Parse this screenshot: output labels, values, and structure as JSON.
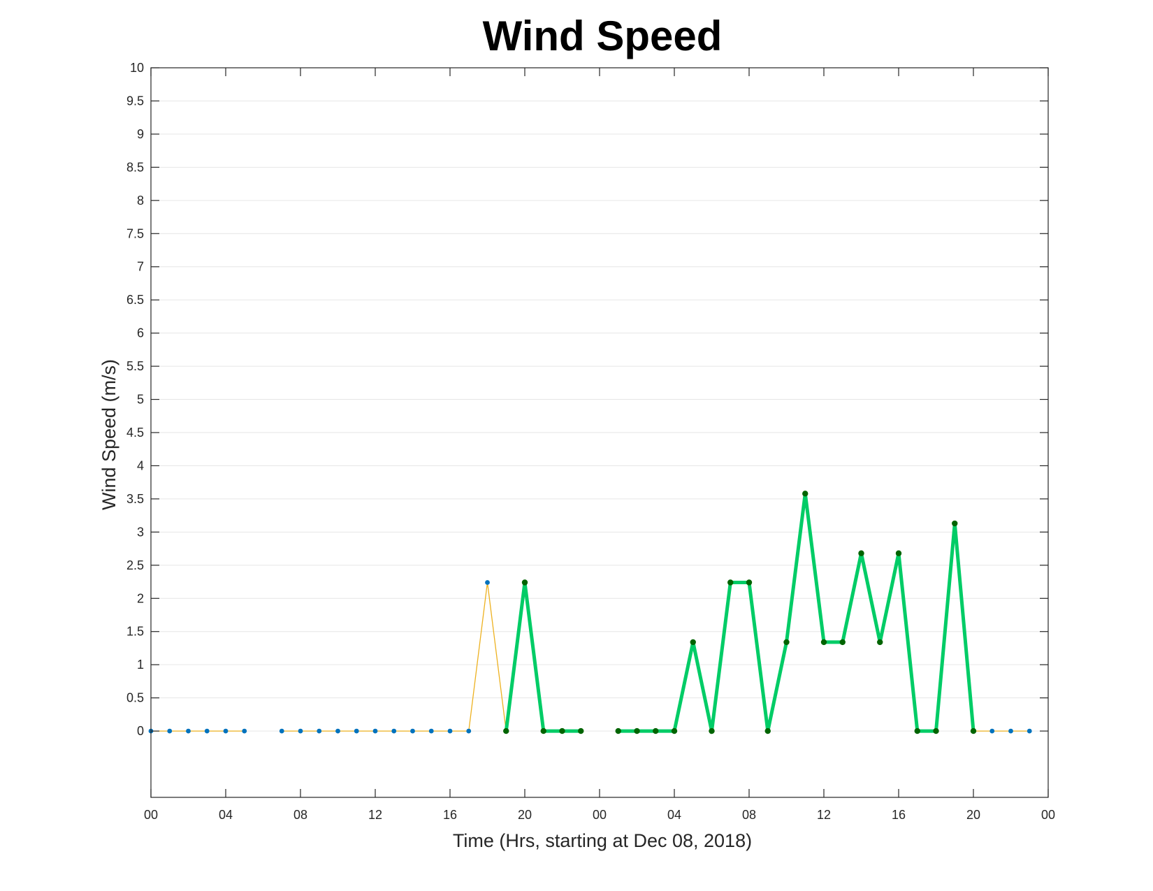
{
  "chart_data": {
    "type": "line",
    "title": "Wind Speed",
    "xlabel": "Time (Hrs, starting at Dec 08, 2018)",
    "ylabel": "Wind Speed (m/s)",
    "xlim": [
      0,
      48
    ],
    "ylim": [
      -1,
      10
    ],
    "yticks": [
      0,
      0.5,
      1,
      1.5,
      2,
      2.5,
      3,
      3.5,
      4,
      4.5,
      5,
      5.5,
      6,
      6.5,
      7,
      7.5,
      8,
      8.5,
      9,
      9.5,
      10
    ],
    "ytick_labels": [
      "0",
      "0.5",
      "1",
      "1.5",
      "2",
      "2.5",
      "3",
      "3.5",
      "4",
      "4.5",
      "5",
      "5.5",
      "6",
      "6.5",
      "7",
      "7.5",
      "8",
      "8.5",
      "9",
      "9.5",
      "10"
    ],
    "xticks": [
      0,
      4,
      8,
      12,
      16,
      20,
      24,
      28,
      32,
      36,
      40,
      44,
      48
    ],
    "xtick_labels": [
      "00",
      "04",
      "08",
      "12",
      "16",
      "20",
      "00",
      "04",
      "08",
      "12",
      "16",
      "20",
      "00"
    ],
    "grid": "horizontal",
    "series": [
      {
        "color": "#EDB120",
        "marker_color": "#0072BD",
        "style": "thin-line-with-dots",
        "segments": [
          {
            "x": [
              0,
              1,
              2,
              3,
              4,
              5
            ],
            "y": [
              0,
              0,
              0,
              0,
              0,
              0
            ]
          },
          {
            "x": [
              7,
              8,
              9,
              10,
              11,
              12,
              13,
              14,
              15,
              16,
              17,
              18,
              19
            ],
            "y": [
              0,
              0,
              0,
              0,
              0,
              0,
              0,
              0,
              0,
              0,
              0,
              2.24,
              0
            ]
          },
          {
            "x": [
              44,
              45,
              46,
              47
            ],
            "y": [
              0,
              0,
              0,
              0
            ]
          }
        ]
      },
      {
        "color": "#00CC66",
        "marker_color": "#006400",
        "style": "thick-line-with-dots",
        "segments": [
          {
            "x": [
              19,
              20,
              21,
              22,
              23
            ],
            "y": [
              0,
              2.24,
              0,
              0,
              0
            ]
          },
          {
            "x": [
              25,
              26,
              27,
              28,
              29,
              30,
              31,
              32,
              33,
              34,
              35,
              36,
              37,
              38,
              39,
              40,
              41,
              42,
              43,
              44
            ],
            "y": [
              0,
              0,
              0,
              0,
              1.34,
              0,
              2.24,
              2.24,
              0,
              1.34,
              3.58,
              1.34,
              1.34,
              2.68,
              1.34,
              2.68,
              0,
              0,
              3.13,
              0
            ]
          }
        ]
      }
    ]
  }
}
